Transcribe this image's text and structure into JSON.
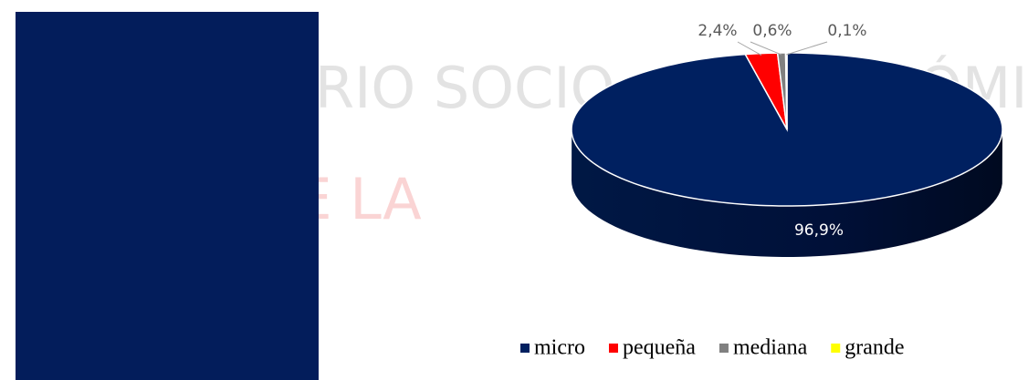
{
  "watermark": [
    "RIO SOCIO",
    "ÓMIC",
    "AL DE LA"
  ],
  "chart_data": {
    "type": "pie",
    "categories": [
      "micro",
      "pequeña",
      "mediana",
      "grande"
    ],
    "values": [
      96.9,
      2.4,
      0.6,
      0.1
    ],
    "value_labels": [
      "96,9%",
      "2,4%",
      "0,6%",
      "0,1%"
    ],
    "colors": [
      "#002060",
      "#ff0000",
      "#808080",
      "#ffff00"
    ],
    "legend": "bottom"
  }
}
